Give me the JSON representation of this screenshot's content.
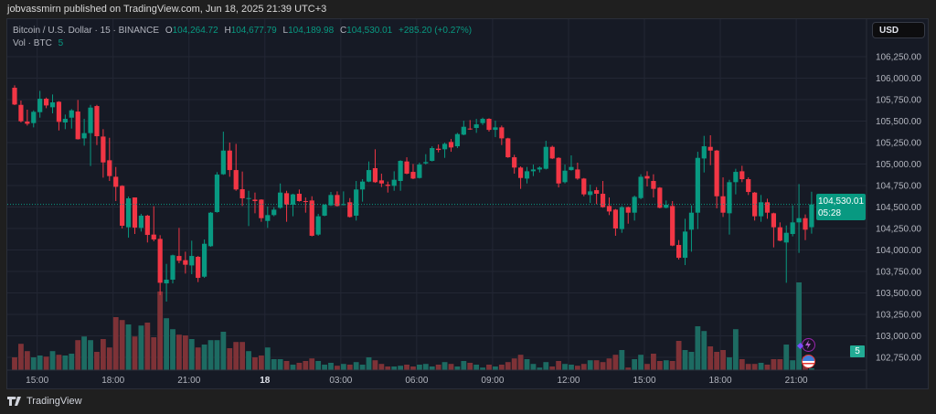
{
  "header": {
    "published": "jobvassmirn published on TradingView.com, Jun 18, 2025 21:39 UTC+3"
  },
  "legend": {
    "symbol": "Bitcoin / U.S. Dollar · 15 · BINANCE",
    "o_label": "O",
    "o": "104,264.72",
    "h_label": "H",
    "h": "104,677.79",
    "l_label": "L",
    "l": "104,189.98",
    "c_label": "C",
    "c": "104,530.01",
    "change": "+285.20 (+0.27%)",
    "vol_label": "Vol · BTC",
    "vol": "5"
  },
  "price_scale": {
    "currency": "USD",
    "last_price": "104,530.01",
    "countdown": "05:28",
    "volume_badge": "5"
  },
  "footer": {
    "brand": "TradingView",
    "logo_icon": "tradingview-logo-icon"
  },
  "colors": {
    "up": "#089981",
    "down": "#f23645",
    "up_volume": "#1d6b62",
    "down_volume": "#7e3237",
    "background": "#161a25",
    "grid": "#232734",
    "event_purple": "#9c27b0"
  },
  "markers": [
    {
      "icon": "lightning-icon"
    },
    {
      "icon": "us-flag-icon"
    }
  ],
  "chart_data": {
    "type": "candlestick",
    "interval_minutes": 15,
    "price_range": [
      102750,
      106250
    ],
    "price_ticks": [
      "106,250.00",
      "106,000.00",
      "105,750.00",
      "105,500.00",
      "105,250.00",
      "105,000.00",
      "104,750.00",
      "104,500.00",
      "104,250.00",
      "104,000.00",
      "103,750.00",
      "103,500.00",
      "103,250.00",
      "103,000.00",
      "102,750.00"
    ],
    "price_tick_values": [
      106250,
      106000,
      105750,
      105500,
      105250,
      105000,
      104750,
      104500,
      104250,
      104000,
      103750,
      103500,
      103250,
      103000,
      102750
    ],
    "time_labels": [
      {
        "text": "15:00",
        "time": "06-17 15:00"
      },
      {
        "text": "18:00",
        "time": "06-17 18:00"
      },
      {
        "text": "21:00",
        "time": "06-17 21:00"
      },
      {
        "text": "18",
        "time": "06-18 00:00",
        "bold": true
      },
      {
        "text": "03:00",
        "time": "06-18 03:00"
      },
      {
        "text": "06:00",
        "time": "06-18 06:00"
      },
      {
        "text": "09:00",
        "time": "06-18 09:00"
      },
      {
        "text": "12:00",
        "time": "06-18 12:00"
      },
      {
        "text": "15:00",
        "time": "06-18 15:00"
      },
      {
        "text": "18:00",
        "time": "06-18 18:00"
      },
      {
        "text": "21:00",
        "time": "06-18 21:00"
      }
    ],
    "grid": true,
    "last_price": 104530.01,
    "columns": [
      "time",
      "open",
      "high",
      "low",
      "close",
      "volume_btc"
    ],
    "candles": [
      [
        "06-17 14:00",
        105888,
        105916,
        105686,
        105693,
        35
      ],
      [
        "06-17 14:15",
        105689,
        105739,
        105484,
        105498,
        72
      ],
      [
        "06-17 14:30",
        105494,
        105633,
        105448,
        105469,
        52
      ],
      [
        "06-17 14:45",
        105477,
        105625,
        105427,
        105608,
        35
      ],
      [
        "06-17 15:00",
        105604,
        105852,
        105540,
        105760,
        40
      ],
      [
        "06-17 15:15",
        105760,
        105774,
        105650,
        105682,
        37
      ],
      [
        "06-17 15:30",
        105661,
        105810,
        105590,
        105718,
        52
      ],
      [
        "06-17 15:45",
        105725,
        105732,
        105391,
        105491,
        42
      ],
      [
        "06-17 16:00",
        105484,
        105576,
        105406,
        105526,
        40
      ],
      [
        "06-17 16:15",
        105540,
        105640,
        105413,
        105625,
        45
      ],
      [
        "06-17 16:30",
        105611,
        105746,
        105285,
        105289,
        82
      ],
      [
        "06-17 16:45",
        105299,
        105526,
        105214,
        105360,
        92
      ],
      [
        "06-17 17:00",
        105360,
        105689,
        104977,
        105657,
        82
      ],
      [
        "06-17 17:15",
        105675,
        105689,
        105221,
        105324,
        50
      ],
      [
        "06-17 17:30",
        105320,
        105406,
        104842,
        105019,
        85
      ],
      [
        "06-17 17:45",
        105044,
        105306,
        104803,
        104860,
        62
      ],
      [
        "06-17 18:00",
        104852,
        104966,
        104569,
        104735,
        145
      ],
      [
        "06-17 18:15",
        104746,
        104753,
        104250,
        104282,
        137
      ],
      [
        "06-17 18:30",
        104264,
        104622,
        104143,
        104601,
        125
      ],
      [
        "06-17 18:45",
        104611,
        104611,
        104186,
        104260,
        92
      ],
      [
        "06-17 19:00",
        104257,
        104420,
        104214,
        104399,
        122
      ],
      [
        "06-17 19:15",
        104399,
        104409,
        104087,
        104175,
        130
      ],
      [
        "06-17 19:30",
        104179,
        104509,
        104101,
        104122,
        90
      ],
      [
        "06-17 19:45",
        104129,
        104172,
        103476,
        103618,
        215
      ],
      [
        "06-17 20:00",
        103611,
        103838,
        103399,
        103654,
        142
      ],
      [
        "06-17 20:15",
        103654,
        103945,
        103611,
        103938,
        112
      ],
      [
        "06-17 20:30",
        103930,
        104257,
        103845,
        103874,
        97
      ],
      [
        "06-17 20:45",
        103881,
        103980,
        103725,
        103828,
        95
      ],
      [
        "06-17 21:00",
        103820,
        104108,
        103718,
        103930,
        85
      ],
      [
        "06-17 21:15",
        103920,
        103930,
        103626,
        103675,
        62
      ],
      [
        "06-17 21:30",
        103689,
        104122,
        103675,
        104072,
        70
      ],
      [
        "06-17 21:45",
        104044,
        104441,
        104037,
        104434,
        82
      ],
      [
        "06-17 22:00",
        104441,
        104906,
        104434,
        104877,
        82
      ],
      [
        "06-17 22:15",
        104881,
        105377,
        104874,
        105157,
        105
      ],
      [
        "06-17 22:30",
        105157,
        105250,
        104852,
        104930,
        60
      ],
      [
        "06-17 22:45",
        104930,
        105235,
        104689,
        104704,
        77
      ],
      [
        "06-17 23:00",
        104707,
        104913,
        104512,
        104601,
        77
      ],
      [
        "06-17 23:15",
        104597,
        104689,
        104278,
        104604,
        52
      ],
      [
        "06-17 23:30",
        104586,
        104668,
        104427,
        104569,
        35
      ],
      [
        "06-17 23:45",
        104586,
        104590,
        104328,
        104370,
        40
      ],
      [
        "06-18 00:00",
        104338,
        104505,
        104257,
        104406,
        62
      ],
      [
        "06-18 00:15",
        104406,
        104498,
        104392,
        104469,
        30
      ],
      [
        "06-18 00:30",
        104491,
        104774,
        104480,
        104668,
        30
      ],
      [
        "06-18 00:45",
        104661,
        104689,
        104328,
        104526,
        25
      ],
      [
        "06-18 01:00",
        104526,
        104654,
        104392,
        104647,
        15
      ],
      [
        "06-18 01:15",
        104654,
        104704,
        104562,
        104569,
        20
      ],
      [
        "06-18 01:30",
        104569,
        104611,
        104434,
        104562,
        25
      ],
      [
        "06-18 01:45",
        104576,
        104625,
        104158,
        104165,
        32
      ],
      [
        "06-18 02:00",
        104179,
        104420,
        104165,
        104392,
        25
      ],
      [
        "06-18 02:15",
        104399,
        104533,
        104392,
        104526,
        15
      ],
      [
        "06-18 02:30",
        104519,
        104675,
        104512,
        104640,
        20
      ],
      [
        "06-18 02:45",
        104640,
        104682,
        104505,
        104512,
        12
      ],
      [
        "06-18 03:00",
        104526,
        104682,
        104519,
        104533,
        17
      ],
      [
        "06-18 03:15",
        104555,
        104604,
        104377,
        104384,
        15
      ],
      [
        "06-18 03:30",
        104399,
        104803,
        104342,
        104704,
        22
      ],
      [
        "06-18 03:45",
        104704,
        104824,
        104562,
        104796,
        15
      ],
      [
        "06-18 04:00",
        104796,
        105030,
        104789,
        104930,
        35
      ],
      [
        "06-18 04:15",
        104952,
        105172,
        104781,
        104789,
        27
      ],
      [
        "06-18 04:30",
        104810,
        104888,
        104732,
        104774,
        17
      ],
      [
        "06-18 04:45",
        104760,
        104796,
        104668,
        104746,
        10
      ],
      [
        "06-18 05:00",
        104746,
        104916,
        104689,
        104817,
        10
      ],
      [
        "06-18 05:15",
        104803,
        105044,
        104689,
        105037,
        12
      ],
      [
        "06-18 05:30",
        105030,
        105079,
        104881,
        104888,
        15
      ],
      [
        "06-18 05:45",
        104909,
        105001,
        104824,
        104831,
        10
      ],
      [
        "06-18 06:00",
        104838,
        105016,
        104831,
        104994,
        15
      ],
      [
        "06-18 06:15",
        105008,
        105115,
        104994,
        105023,
        17
      ],
      [
        "06-18 06:30",
        105037,
        105207,
        105030,
        105186,
        10
      ],
      [
        "06-18 06:45",
        105179,
        105228,
        105136,
        105164,
        15
      ],
      [
        "06-18 07:00",
        105172,
        105250,
        105072,
        105235,
        22
      ],
      [
        "06-18 07:15",
        105257,
        105292,
        105143,
        105193,
        17
      ],
      [
        "06-18 07:30",
        105207,
        105363,
        105186,
        105349,
        10
      ],
      [
        "06-18 07:45",
        105342,
        105505,
        105335,
        105434,
        25
      ],
      [
        "06-18 08:00",
        105413,
        105512,
        105398,
        105406,
        20
      ],
      [
        "06-18 08:15",
        105420,
        105526,
        105363,
        105462,
        15
      ],
      [
        "06-18 08:30",
        105477,
        105540,
        105455,
        105526,
        7
      ],
      [
        "06-18 08:45",
        105526,
        105533,
        105377,
        105398,
        15
      ],
      [
        "06-18 09:00",
        105398,
        105505,
        105313,
        105427,
        10
      ],
      [
        "06-18 09:15",
        105427,
        105448,
        105221,
        105299,
        15
      ],
      [
        "06-18 09:30",
        105299,
        105306,
        105072,
        105079,
        22
      ],
      [
        "06-18 09:45",
        105079,
        105108,
        104888,
        104959,
        32
      ],
      [
        "06-18 10:00",
        104959,
        104973,
        104711,
        104838,
        42
      ],
      [
        "06-18 10:15",
        104831,
        104966,
        104774,
        104916,
        30
      ],
      [
        "06-18 10:30",
        104916,
        104994,
        104860,
        104937,
        17
      ],
      [
        "06-18 10:45",
        104937,
        104973,
        104902,
        104959,
        7
      ],
      [
        "06-18 11:00",
        104945,
        105271,
        104937,
        105200,
        22
      ],
      [
        "06-18 11:15",
        105200,
        105214,
        105058,
        105065,
        10
      ],
      [
        "06-18 11:30",
        105072,
        105079,
        104728,
        104774,
        25
      ],
      [
        "06-18 11:45",
        104789,
        104994,
        104774,
        104923,
        17
      ],
      [
        "06-18 12:00",
        104930,
        105101,
        104923,
        104966,
        15
      ],
      [
        "06-18 12:15",
        104937,
        105016,
        104817,
        104831,
        12
      ],
      [
        "06-18 12:30",
        104831,
        104838,
        104625,
        104647,
        17
      ],
      [
        "06-18 12:45",
        104640,
        104760,
        104547,
        104682,
        27
      ],
      [
        "06-18 13:00",
        104696,
        104732,
        104533,
        104654,
        27
      ],
      [
        "06-18 13:15",
        104654,
        104803,
        104491,
        104498,
        22
      ],
      [
        "06-18 13:30",
        104512,
        104611,
        104406,
        104448,
        32
      ],
      [
        "06-18 13:45",
        104469,
        104477,
        104165,
        104250,
        42
      ],
      [
        "06-18 14:00",
        104243,
        104512,
        104200,
        104498,
        55
      ],
      [
        "06-18 14:15",
        104498,
        104505,
        104306,
        104434,
        7
      ],
      [
        "06-18 14:30",
        104434,
        104633,
        104342,
        104618,
        30
      ],
      [
        "06-18 14:45",
        104604,
        104881,
        104590,
        104852,
        42
      ],
      [
        "06-18 15:00",
        104860,
        104916,
        104739,
        104831,
        17
      ],
      [
        "06-18 15:15",
        104803,
        104881,
        104611,
        104711,
        45
      ],
      [
        "06-18 15:30",
        104725,
        104732,
        104484,
        104491,
        25
      ],
      [
        "06-18 15:45",
        104491,
        104576,
        104484,
        104526,
        27
      ],
      [
        "06-18 16:00",
        104512,
        104569,
        104044,
        104051,
        25
      ],
      [
        "06-18 16:15",
        104058,
        104115,
        103888,
        103909,
        80
      ],
      [
        "06-18 16:30",
        103909,
        104363,
        103824,
        104214,
        55
      ],
      [
        "06-18 16:45",
        104236,
        104519,
        103980,
        104434,
        50
      ],
      [
        "06-18 17:00",
        104434,
        105143,
        104243,
        105072,
        120
      ],
      [
        "06-18 17:15",
        105065,
        105328,
        104902,
        105207,
        107
      ],
      [
        "06-18 17:30",
        105200,
        105335,
        104987,
        105157,
        65
      ],
      [
        "06-18 17:45",
        105157,
        105164,
        104484,
        104625,
        50
      ],
      [
        "06-18 18:00",
        104625,
        104845,
        104384,
        104434,
        55
      ],
      [
        "06-18 18:15",
        104427,
        104817,
        104179,
        104789,
        35
      ],
      [
        "06-18 18:30",
        104789,
        104945,
        104647,
        104909,
        112
      ],
      [
        "06-18 18:45",
        104916,
        104980,
        104789,
        104824,
        30
      ],
      [
        "06-18 19:00",
        104824,
        104845,
        104640,
        104675,
        17
      ],
      [
        "06-18 19:15",
        104668,
        104675,
        104342,
        104392,
        17
      ],
      [
        "06-18 19:30",
        104392,
        104640,
        104328,
        104555,
        20
      ],
      [
        "06-18 19:45",
        104555,
        104597,
        104363,
        104434,
        15
      ],
      [
        "06-18 20:00",
        104427,
        104434,
        104030,
        104264,
        30
      ],
      [
        "06-18 20:15",
        104264,
        104321,
        104101,
        104108,
        30
      ],
      [
        "06-18 20:30",
        104087,
        104285,
        103618,
        104200,
        70
      ],
      [
        "06-18 20:45",
        104186,
        104519,
        104158,
        104321,
        27
      ],
      [
        "06-18 21:00",
        104321,
        104767,
        103966,
        104370,
        240
      ],
      [
        "06-18 21:15",
        104370,
        104413,
        104115,
        104236,
        37
      ],
      [
        "06-18 21:30",
        104264.72,
        104677.79,
        104189.98,
        104530.01,
        5
      ]
    ]
  }
}
